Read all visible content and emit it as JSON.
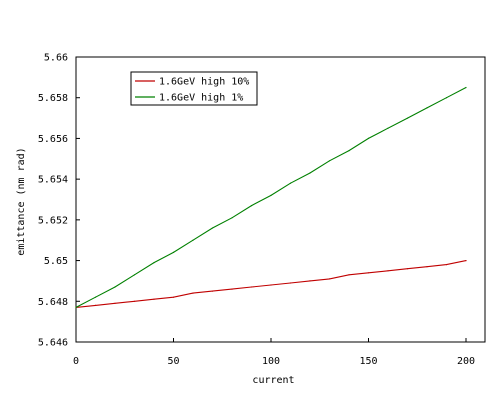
{
  "chart_data": {
    "type": "line",
    "title": "",
    "xlabel": "current",
    "ylabel": "emittance (nm rad)",
    "xlim": [
      0,
      200
    ],
    "ylim": [
      5.646,
      5.66
    ],
    "x_ticks": [
      0,
      50,
      100,
      150,
      200
    ],
    "y_ticks": [
      5.646,
      5.648,
      5.65,
      5.652,
      5.654,
      5.656,
      5.658,
      5.66
    ],
    "x_tick_labels": [
      "0",
      "50",
      "100",
      "150",
      "200"
    ],
    "y_tick_labels": [
      "5.646",
      "5.648",
      "5.65",
      "5.652",
      "5.654",
      "5.656",
      "5.658",
      "5.66"
    ],
    "grid": false,
    "legend_position": "top-left",
    "series": [
      {
        "name": "1.6GeV high 10%",
        "color": "#c00000",
        "x": [
          0,
          10,
          20,
          30,
          40,
          50,
          60,
          70,
          80,
          90,
          100,
          110,
          120,
          130,
          140,
          150,
          160,
          170,
          180,
          190,
          200
        ],
        "y": [
          5.6477,
          5.6478,
          5.6479,
          5.648,
          5.6481,
          5.6482,
          5.6484,
          5.6485,
          5.6486,
          5.6487,
          5.6488,
          5.6489,
          5.649,
          5.6491,
          5.6493,
          5.6494,
          5.6495,
          5.6496,
          5.6497,
          5.6498,
          5.65
        ]
      },
      {
        "name": "1.6GeV high 1%",
        "color": "#008000",
        "x": [
          0,
          10,
          20,
          30,
          40,
          50,
          60,
          70,
          80,
          90,
          100,
          110,
          120,
          130,
          140,
          150,
          160,
          170,
          180,
          190,
          200
        ],
        "y": [
          5.6477,
          5.6482,
          5.6487,
          5.6493,
          5.6499,
          5.6504,
          5.651,
          5.6516,
          5.6521,
          5.6527,
          5.6532,
          5.6538,
          5.6543,
          5.6549,
          5.6554,
          5.656,
          5.6565,
          5.657,
          5.6575,
          5.658,
          5.6585
        ]
      }
    ]
  }
}
